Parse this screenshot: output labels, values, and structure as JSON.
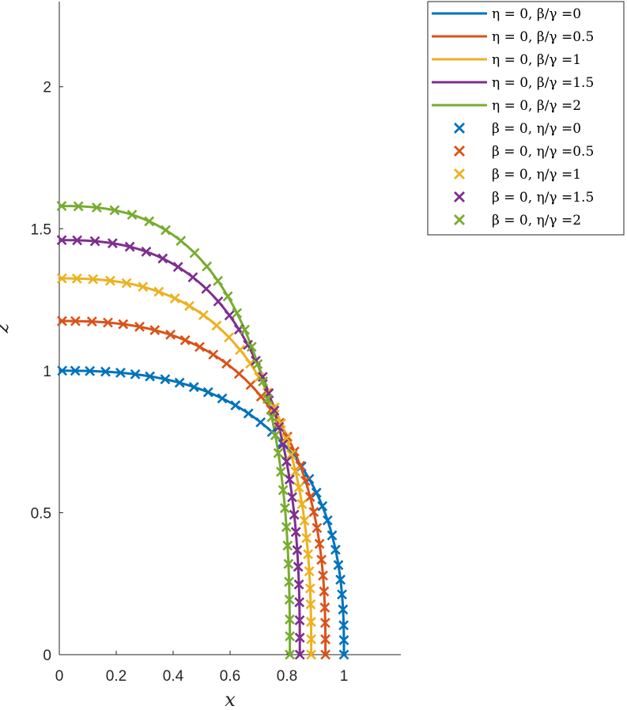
{
  "chart_data": {
    "type": "line",
    "title": "",
    "xlabel": "x",
    "ylabel": "z",
    "xlim": [
      0,
      1.2
    ],
    "ylim": [
      0,
      2.3
    ],
    "xticks": [
      0,
      0.2,
      0.4,
      0.6,
      0.8,
      1
    ],
    "xtick_labels": [
      "0",
      "0.2",
      "0.4",
      "0.6",
      "0.8",
      "1"
    ],
    "yticks": [
      0,
      0.5,
      1,
      1.5,
      2
    ],
    "ytick_labels": [
      "0",
      "0.5",
      "1",
      "1.5",
      "2"
    ],
    "grid": false,
    "legend_position": "outside-top-right",
    "colors": [
      "#0072BD",
      "#D95319",
      "#EDB120",
      "#7E2F8E",
      "#77AC30"
    ],
    "series": [
      {
        "name": "η = 0, β/γ =0",
        "kind": "line",
        "color": "#0072BD",
        "base_radius": 1.0,
        "top_height": 1.0
      },
      {
        "name": "η = 0, β/γ =0.5",
        "kind": "line",
        "color": "#D95319",
        "base_radius": 0.935,
        "top_height": 1.175
      },
      {
        "name": "η = 0, β/γ =1",
        "kind": "line",
        "color": "#EDB120",
        "base_radius": 0.885,
        "top_height": 1.325
      },
      {
        "name": "η = 0, β/γ =1.5",
        "kind": "line",
        "color": "#7E2F8E",
        "base_radius": 0.845,
        "top_height": 1.46
      },
      {
        "name": "η = 0, β/γ =2",
        "kind": "line",
        "color": "#77AC30",
        "base_radius": 0.81,
        "top_height": 1.58
      },
      {
        "name": "β = 0, η/γ =0",
        "kind": "marker",
        "color": "#0072BD",
        "base_radius": 1.0,
        "top_height": 1.0
      },
      {
        "name": "β = 0, η/γ =0.5",
        "kind": "marker",
        "color": "#D95319",
        "base_radius": 0.935,
        "top_height": 1.175
      },
      {
        "name": "β = 0, η/γ =1",
        "kind": "marker",
        "color": "#EDB120",
        "base_radius": 0.885,
        "top_height": 1.325
      },
      {
        "name": "β = 0, η/γ =1.5",
        "kind": "marker",
        "color": "#7E2F8E",
        "base_radius": 0.845,
        "top_height": 1.46
      },
      {
        "name": "β = 0, η/γ =2",
        "kind": "marker",
        "color": "#77AC30",
        "base_radius": 0.81,
        "top_height": 1.58
      }
    ]
  }
}
